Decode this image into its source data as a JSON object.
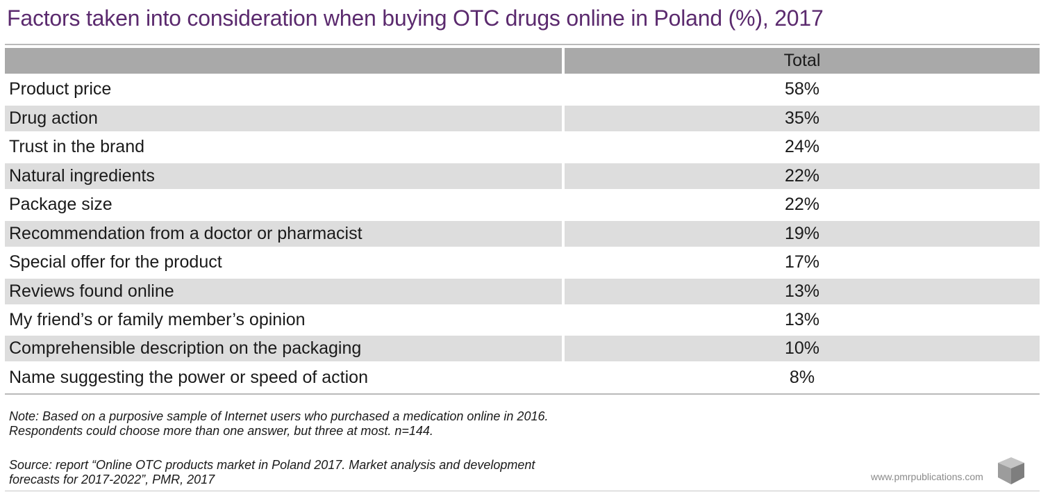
{
  "title": "Factors taken into consideration when buying OTC drugs online in Poland (%), 2017",
  "chart_data": {
    "type": "table",
    "columns": [
      "",
      "Total"
    ],
    "rows": [
      {
        "label": "Product price",
        "value": "58%"
      },
      {
        "label": "Drug action",
        "value": "35%"
      },
      {
        "label": "Trust in the brand",
        "value": "24%"
      },
      {
        "label": "Natural ingredients",
        "value": "22%"
      },
      {
        "label": "Package size",
        "value": "22%"
      },
      {
        "label": "Recommendation from a doctor or pharmacist",
        "value": "19%"
      },
      {
        "label": "Special offer for the product",
        "value": "17%"
      },
      {
        "label": "Reviews found online",
        "value": "13%"
      },
      {
        "label": "My friend’s or family member’s opinion",
        "value": "13%"
      },
      {
        "label": "Comprehensible description on the packaging",
        "value": "10%"
      },
      {
        "label": "Name suggesting the power or speed of action",
        "value": "8%"
      }
    ]
  },
  "notes": {
    "note_line1": "Note: Based on a purposive sample of Internet users who purchased a medication online in 2016.",
    "note_line2": "Respondents could choose more than one answer, but three at most. n=144.",
    "source_line1": "Source: report “Online OTC products market in Poland 2017. Market analysis and development",
    "source_line2": "forecasts for 2017-2022”, PMR, 2017"
  },
  "footer": {
    "website": "www.pmrpublications.com",
    "logo_icon": "pmr-cube-icon"
  },
  "colors": {
    "title": "#5b2a6e",
    "header_bg": "#a9a9a9",
    "alt_row_bg": "#dddddd"
  }
}
